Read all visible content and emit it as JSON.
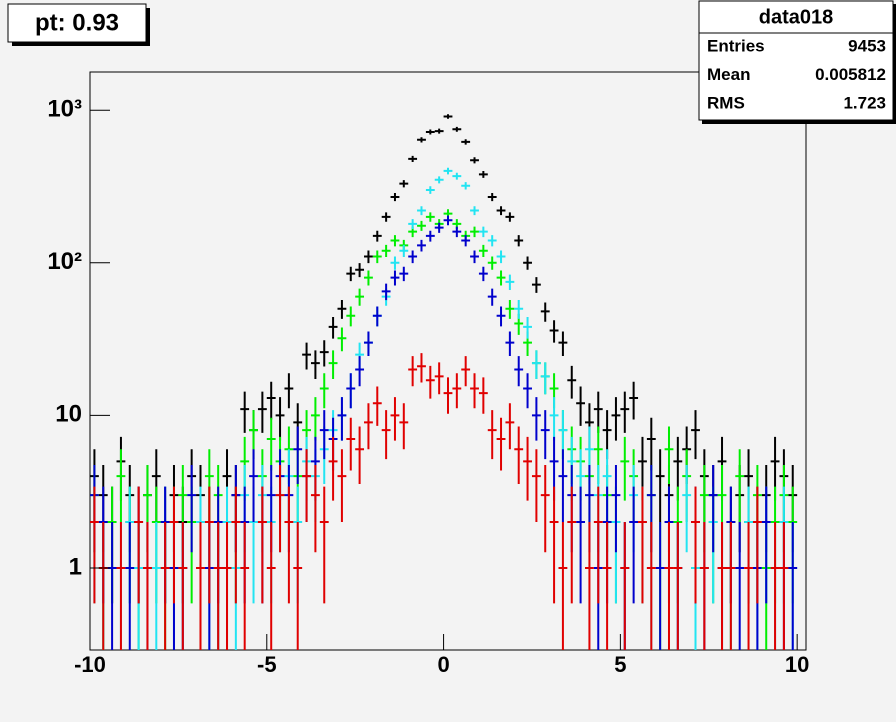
{
  "chart_data": {
    "type": "histogram_errors",
    "title": "pt: 0.93",
    "log_y": true,
    "xlim": [
      -10,
      10.25
    ],
    "xticks": [
      -10,
      -5,
      0,
      5,
      10
    ],
    "ylim": [
      0.29,
      1780
    ],
    "yticks": [
      1,
      10,
      {
        "value": 100,
        "label": "10²"
      },
      {
        "value": 1000,
        "label": "10³"
      }
    ],
    "x": [
      -9.875,
      -9.625,
      -9.375,
      -9.125,
      -8.875,
      -8.625,
      -8.375,
      -8.125,
      -7.875,
      -7.625,
      -7.375,
      -7.125,
      -6.875,
      -6.625,
      -6.375,
      -6.125,
      -5.875,
      -5.625,
      -5.375,
      -5.125,
      -4.875,
      -4.625,
      -4.375,
      -4.125,
      -3.875,
      -3.625,
      -3.375,
      -3.125,
      -2.875,
      -2.625,
      -2.375,
      -2.125,
      -1.875,
      -1.625,
      -1.375,
      -1.125,
      -0.875,
      -0.625,
      -0.375,
      -0.125,
      0.125,
      0.375,
      0.625,
      0.875,
      1.125,
      1.375,
      1.625,
      1.875,
      2.125,
      2.375,
      2.625,
      2.875,
      3.125,
      3.375,
      3.625,
      3.875,
      4.125,
      4.375,
      4.625,
      4.875,
      5.125,
      5.375,
      5.625,
      5.875,
      6.125,
      6.375,
      6.625,
      6.875,
      7.125,
      7.375,
      7.625,
      7.875,
      8.125,
      8.375,
      8.625,
      8.875,
      9.125,
      9.375,
      9.625,
      9.875
    ],
    "series": [
      {
        "color": "#000000",
        "values": [
          4,
          3,
          2,
          5,
          3,
          2,
          3,
          4,
          2,
          3,
          2,
          4,
          3,
          2,
          1,
          4,
          3,
          11,
          8,
          11,
          13,
          10,
          15,
          9,
          25,
          22,
          26,
          38,
          50,
          85,
          90,
          110,
          150,
          200,
          270,
          330,
          480,
          640,
          720,
          730,
          910,
          750,
          620,
          470,
          380,
          270,
          220,
          200,
          140,
          100,
          72,
          48,
          36,
          30,
          17,
          12,
          9,
          11,
          8,
          10,
          11,
          13,
          5,
          7,
          4,
          3,
          5,
          6,
          8,
          4,
          3,
          5,
          2,
          3,
          4,
          2,
          3,
          5,
          4,
          3
        ]
      },
      {
        "color": "#00ee00",
        "values": [
          3,
          1,
          2,
          4,
          2,
          1,
          3,
          2,
          1,
          2,
          3,
          2,
          1,
          4,
          3,
          1,
          2,
          5,
          8,
          4,
          7,
          5,
          6,
          4,
          8,
          10,
          15,
          22,
          32,
          45,
          60,
          80,
          110,
          120,
          140,
          130,
          160,
          175,
          200,
          180,
          210,
          180,
          150,
          160,
          120,
          100,
          80,
          50,
          40,
          30,
          22,
          18,
          15,
          8,
          6,
          5,
          4,
          6,
          3,
          2,
          5,
          4,
          2,
          3,
          1,
          6,
          2,
          4,
          1,
          3,
          2,
          3,
          1,
          4,
          2,
          3,
          1,
          2,
          3,
          2
        ]
      },
      {
        "color": "#22e4f2",
        "values": [
          2,
          1,
          null,
          1,
          2,
          1,
          null,
          1,
          2,
          1,
          1,
          null,
          2,
          1,
          1,
          2,
          1,
          3,
          2,
          3,
          2,
          3,
          4,
          2,
          5,
          4,
          6,
          8,
          10,
          15,
          25,
          30,
          45,
          60,
          100,
          120,
          180,
          220,
          300,
          350,
          400,
          370,
          320,
          220,
          160,
          140,
          110,
          75,
          50,
          38,
          22,
          18,
          10,
          8,
          5,
          4,
          6,
          3,
          4,
          2,
          1,
          3,
          2,
          1,
          null,
          2,
          1,
          3,
          1,
          null,
          2,
          1,
          1,
          null,
          2,
          1,
          2,
          1,
          2,
          1
        ]
      },
      {
        "color": "#0000cc",
        "values": [
          3,
          2,
          1,
          null,
          1,
          2,
          1,
          null,
          2,
          1,
          1,
          3,
          null,
          1,
          2,
          1,
          3,
          2,
          4,
          2,
          3,
          4,
          3,
          6,
          4,
          5,
          8,
          7,
          10,
          15,
          20,
          30,
          45,
          65,
          80,
          85,
          110,
          130,
          150,
          170,
          190,
          160,
          140,
          110,
          85,
          60,
          45,
          30,
          20,
          15,
          10,
          8,
          5,
          4,
          3,
          2,
          3,
          1,
          2,
          3,
          1,
          2,
          null,
          3,
          1,
          2,
          1,
          null,
          2,
          1,
          3,
          1,
          2,
          1,
          null,
          1,
          2,
          null,
          1,
          1
        ]
      },
      {
        "color": "#e00000",
        "values": [
          2,
          1,
          null,
          1,
          null,
          2,
          1,
          null,
          1,
          2,
          1,
          null,
          1,
          2,
          1,
          1,
          2,
          1,
          null,
          2,
          1,
          3,
          2,
          1,
          4,
          3,
          2,
          5,
          4,
          7,
          6,
          9,
          12,
          8,
          10,
          9,
          20,
          21,
          17,
          18,
          14,
          15,
          20,
          15,
          14,
          8,
          7,
          9,
          6,
          5,
          4,
          3,
          2,
          1,
          2,
          null,
          1,
          2,
          1,
          null,
          1,
          null,
          2,
          1,
          null,
          1,
          1,
          null,
          2,
          1,
          null,
          1,
          1,
          null,
          1,
          2,
          null,
          1,
          1,
          null
        ]
      }
    ],
    "stats_box": {
      "title": "data018",
      "rows": [
        {
          "label": "Entries",
          "value": 9453
        },
        {
          "label": "Mean",
          "value": 0.005812
        },
        {
          "label": "RMS",
          "value": 1.723
        }
      ]
    }
  }
}
